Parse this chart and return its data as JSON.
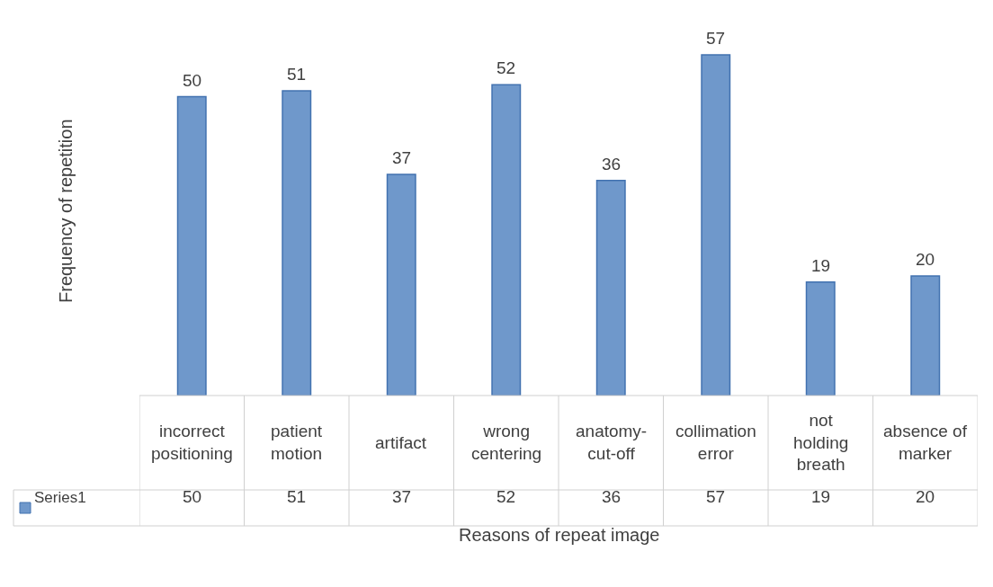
{
  "chart_data": {
    "type": "bar",
    "xlabel": "Reasons of repeat image",
    "ylabel": "Frequency of repetition",
    "categories": [
      "incorrect positioning",
      "patient motion",
      "artifact",
      "wrong centering",
      "anatomy-cut-off",
      "collimation error",
      "not holding breath",
      "absence of marker"
    ],
    "series": [
      {
        "name": "Series1",
        "color": "#6f98cb",
        "values": [
          50,
          51,
          37,
          52,
          36,
          57,
          19,
          20
        ],
        "value_labels": [
          "50",
          "51",
          "37",
          "52",
          "36",
          "57",
          "19",
          "20"
        ]
      }
    ],
    "annotations": [
      "50",
      "51",
      "37",
      "52",
      "36",
      "57",
      "19",
      "20"
    ]
  }
}
